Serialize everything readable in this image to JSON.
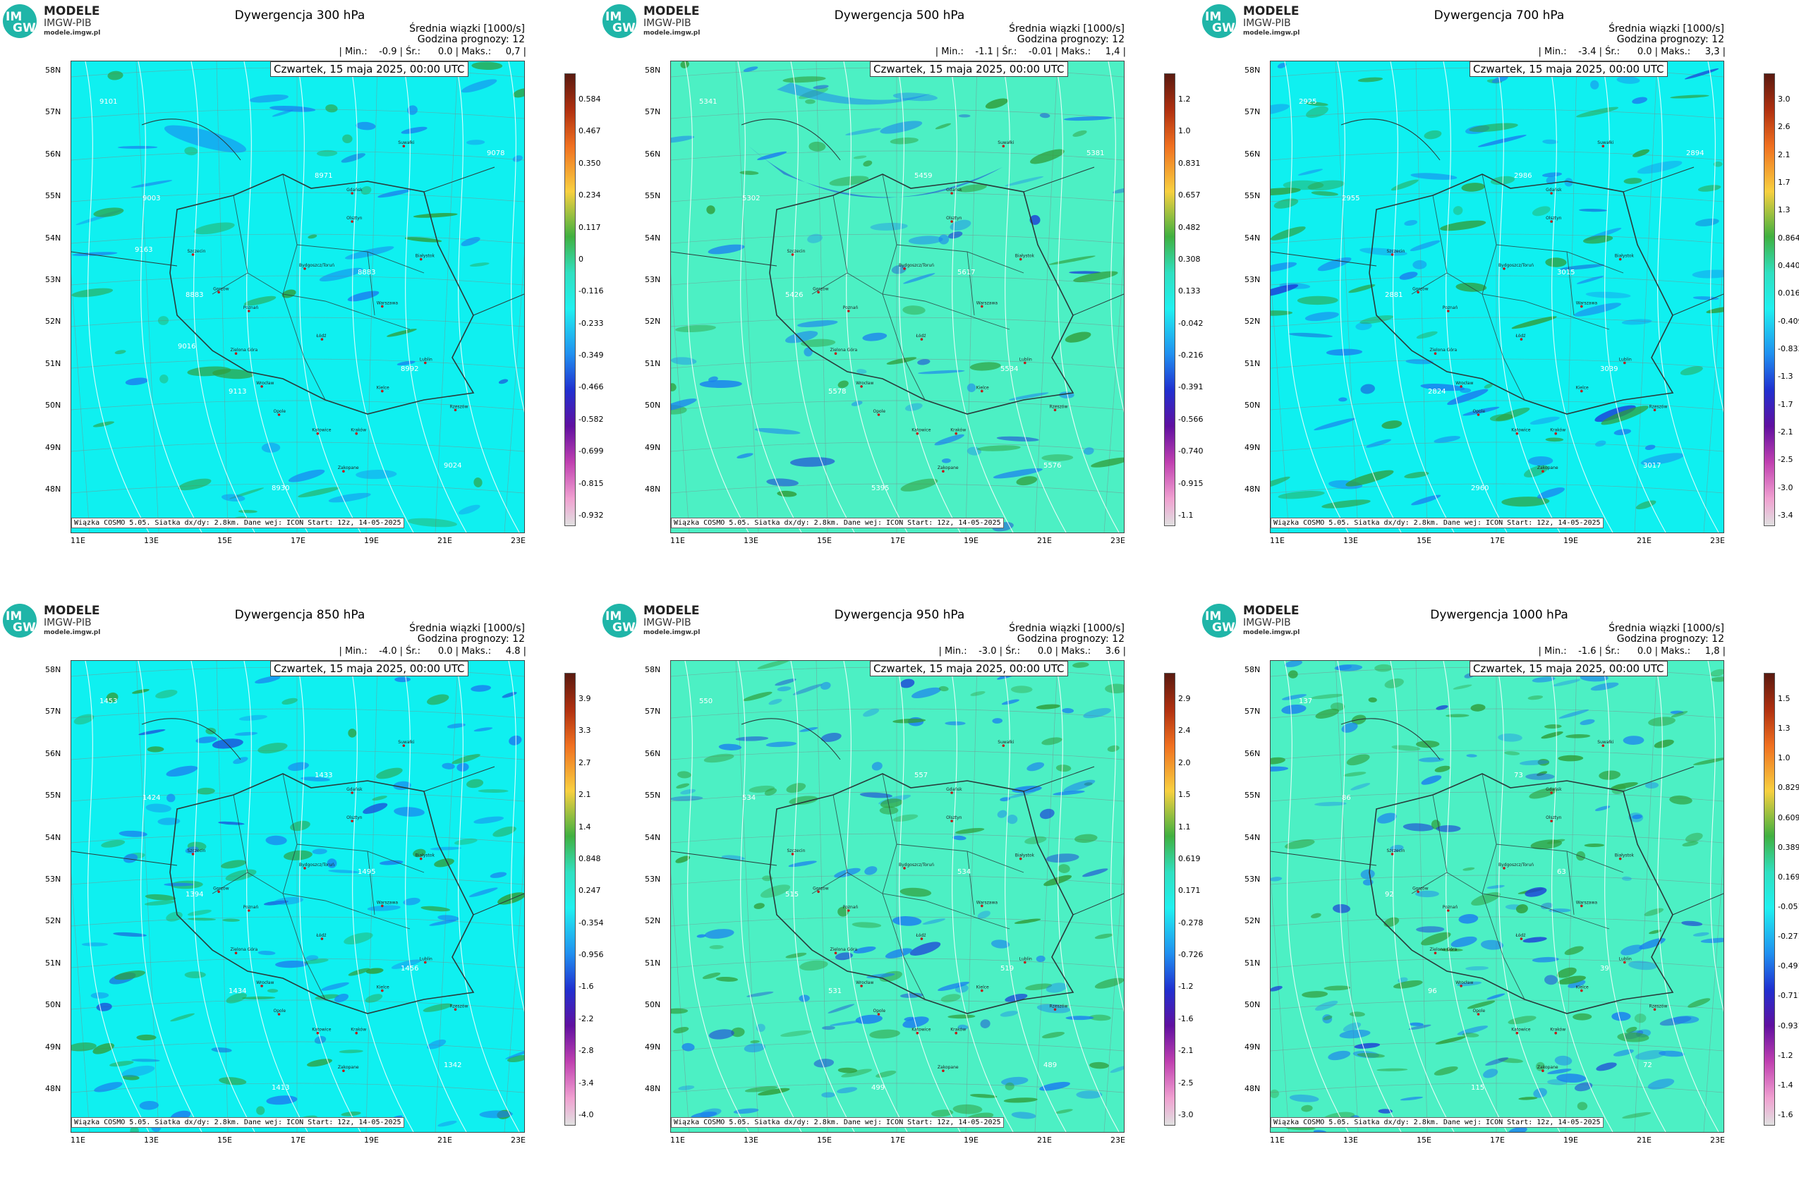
{
  "logo": {
    "line1": "MODELE",
    "line2": "IMGW-PIB",
    "line3": "modele.imgw.pl",
    "badge_top": "IM",
    "badge_bottom": "GW"
  },
  "colors": {
    "map_a": "#0ff0f0",
    "map_b": "#4cf0c4",
    "negative": "#1a7ef0",
    "positive": "#2f9e3a",
    "strong_negative": "#1c3fd8",
    "contour": "#ffffff",
    "border": "#2a3a3a"
  },
  "lat_labels": [
    "58N",
    "57N",
    "56N",
    "55N",
    "54N",
    "53N",
    "52N",
    "51N",
    "50N",
    "49N",
    "48N"
  ],
  "lon_labels": [
    "11E",
    "13E",
    "15E",
    "17E",
    "19E",
    "21E",
    "23E"
  ],
  "panels": [
    {
      "title": "Dywergencja 300 hPa",
      "avg_label": "Średnia wiązki [1000/s]",
      "forecast": "Godzina prognozy: 12",
      "stats": "| Min.:    -0.9 | Śr.:      0.0 | Maks.:     0,7 |",
      "date": "Czwartek, 15 maja 2025, 00:00 UTC",
      "footer": "Wiązka  COSMO 5.05. Siatka dx/dy: 2.8km. Dane wej: ICON Start: 12z, 14-05-2025",
      "bg": "#0ff0f0",
      "colorbar": [
        "0.584",
        "0.467",
        "0.350",
        "0.234",
        "0.117",
        "0",
        "-0.116",
        "-0.233",
        "-0.349",
        "-0.466",
        "-0.582",
        "-0.699",
        "-0.815",
        "-0.932"
      ],
      "contours": [
        "9101",
        "9003",
        "8883",
        "9113",
        "8930",
        "8971",
        "8883",
        "8992",
        "9024",
        "9078",
        "9163",
        "9016"
      ]
    },
    {
      "title": "Dywergencja 500 hPa",
      "avg_label": "Średnia wiązki [1000/s]",
      "forecast": "Godzina prognozy: 12",
      "stats": "| Min.:    -1.1 | Śr.:    -0.01 | Maks.:     1,4 |",
      "date": "Czwartek, 15 maja 2025, 00:00 UTC",
      "footer": "Wiązka  COSMO 5.05. Siatka dx/dy: 2.8km. Dane wej: ICON Start: 12z, 14-05-2025",
      "bg": "#4cf0c4",
      "colorbar": [
        "1.2",
        "1.0",
        "0.831",
        "0.657",
        "0.482",
        "0.308",
        "0.133",
        "-0.042",
        "-0.216",
        "-0.391",
        "-0.566",
        "-0.740",
        "-0.915",
        "-1.1"
      ],
      "contours": [
        "5341",
        "5302",
        "5426",
        "5578",
        "5395",
        "5459",
        "5617",
        "5534",
        "5576",
        "5381"
      ]
    },
    {
      "title": "Dywergencja 700 hPa",
      "avg_label": "Średnia wiązki [1000/s]",
      "forecast": "Godzina prognozy: 12",
      "stats": "| Min.:    -3.4 | Śr.:      0.0 | Maks.:     3,3 |",
      "date": "Czwartek, 15 maja 2025, 00:00 UTC",
      "footer": "Wiązka  COSMO 5.05. Siatka dx/dy: 2.8km. Dane wej: ICON Start: 12z, 14-05-2025",
      "bg": "#0ff0f0",
      "colorbar": [
        "3.0",
        "2.6",
        "2.1",
        "1.7",
        "1.3",
        "0.864",
        "0.440",
        "0.016",
        "-0.409",
        "-0.833",
        "-1.3",
        "-1.7",
        "-2.1",
        "-2.5",
        "-3.0",
        "-3.4"
      ],
      "contours": [
        "2925",
        "2955",
        "2881",
        "2824",
        "2960",
        "2986",
        "3015",
        "3039",
        "3017",
        "2894"
      ]
    },
    {
      "title": "Dywergencja 850 hPa",
      "avg_label": "Średnia wiązki [1000/s]",
      "forecast": "Godzina prognozy: 12",
      "stats": "| Min.:    -4.0 | Śr.:      0.0 | Maks.:     4.8 |",
      "date": "Czwartek, 15 maja 2025, 00:00 UTC",
      "footer": "Wiązka  COSMO 5.05. Siatka dx/dy: 2.8km. Dane wej: ICON Start: 12z, 14-05-2025",
      "bg": "#0ff0f0",
      "colorbar": [
        "3.9",
        "3.3",
        "2.7",
        "2.1",
        "1.4",
        "0.848",
        "0.247",
        "-0.354",
        "-0.956",
        "-1.6",
        "-2.2",
        "-2.8",
        "-3.4",
        "-4.0"
      ],
      "contours": [
        "1453",
        "1424",
        "1394",
        "1434",
        "1413",
        "1433",
        "1495",
        "1456",
        "1342"
      ]
    },
    {
      "title": "Dywergencja 950 hPa",
      "avg_label": "Średnia wiązki [1000/s]",
      "forecast": "Godzina prognozy: 12",
      "stats": "| Min.:    -3.0 | Śr.:      0.0 | Maks.:     3.6 |",
      "date": "Czwartek, 15 maja 2025, 00:00 UTC",
      "footer": "Wiązka  COSMO 5.05. Siatka dx/dy: 2.8km. Dane wej: ICON Start: 12z, 14-05-2025",
      "bg": "#4cf0c4",
      "colorbar": [
        "2.9",
        "2.4",
        "2.0",
        "1.5",
        "1.1",
        "0.619",
        "0.171",
        "-0.278",
        "-0.726",
        "-1.2",
        "-1.6",
        "-2.1",
        "-2.5",
        "-3.0"
      ],
      "contours": [
        "550",
        "534",
        "515",
        "531",
        "499",
        "557",
        "534",
        "519",
        "489"
      ]
    },
    {
      "title": "Dywergencja 1000 hPa",
      "avg_label": "Średnia wiązki [1000/s]",
      "forecast": "Godzina prognozy: 12",
      "stats": "| Min.:    -1.6 | Śr.:      0.0 | Maks.:     1,8 |",
      "date": "Czwartek, 15 maja 2025, 00:00 UTC",
      "footer": "Wiązka  COSMO 5.05. Siatka dx/dy: 2.8km. Dane wej: ICON Start: 12z, 14-05-2025",
      "bg": "#4cf0c4",
      "colorbar": [
        "1.5",
        "1.3",
        "1.0",
        "0.829",
        "0.609",
        "0.389",
        "0.169",
        "-0.051",
        "-0.271",
        "-0.491",
        "-0.711",
        "-0.931",
        "-1.2",
        "-1.4",
        "-1.6"
      ],
      "contours": [
        "137",
        "86",
        "92",
        "96",
        "115",
        "73",
        "63",
        "39",
        "72"
      ]
    }
  ],
  "cities": [
    "Gdańsk",
    "Suwałki",
    "Olsztyn",
    "Szczecin",
    "Białystok",
    "Bydgoszcz/Toruń",
    "Gorzów",
    "Poznań",
    "Warszawa",
    "Łódź",
    "Zielona Góra",
    "Lublin",
    "Wrocław",
    "Kielce",
    "Opole",
    "Rzeszów",
    "Katowice",
    "Kraków",
    "Zakopane"
  ]
}
